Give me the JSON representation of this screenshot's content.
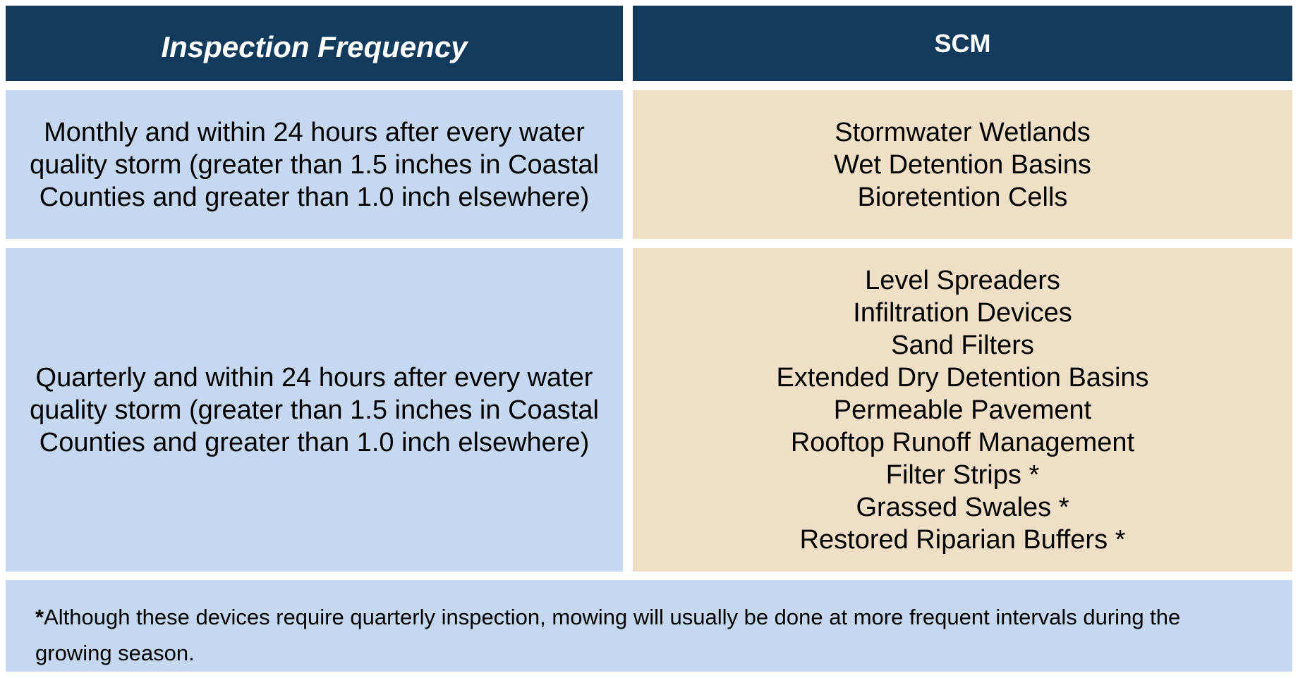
{
  "colors": {
    "page_bg": "#FFFFFF",
    "header_bg": "#123A5C",
    "header_text": "#FFFFFF",
    "frequency_cell_bg": "#C5D8EF",
    "scm_cell_bg": "#EFDFC7",
    "footnote_bg": "#C5D8EF",
    "body_text": "#000000"
  },
  "table": {
    "columns": [
      {
        "label": "Inspection Frequency"
      },
      {
        "label": "SCM"
      }
    ],
    "rows": [
      {
        "frequency": "Monthly and within 24 hours after every water quality storm (greater than 1.5 inches in Coastal Counties and greater than 1.0 inch elsewhere)",
        "scm_items": [
          "Stormwater Wetlands",
          "Wet Detention Basins",
          "Bioretention Cells"
        ]
      },
      {
        "frequency": "Quarterly and within 24 hours after every water quality storm (greater than 1.5 inches in Coastal Counties and greater than 1.0 inch elsewhere)",
        "scm_items": [
          "Level Spreaders",
          "Infiltration Devices",
          "Sand Filters",
          "Extended Dry Detention Basins",
          "Permeable Pavement",
          "Rooftop Runoff Management",
          "Filter Strips *",
          "Grassed Swales *",
          "Restored Riparian Buffers *"
        ]
      }
    ]
  },
  "footnote": {
    "marker": "*",
    "text": "Although these devices require quarterly inspection, mowing will usually be done at more frequent intervals during the growing season."
  }
}
